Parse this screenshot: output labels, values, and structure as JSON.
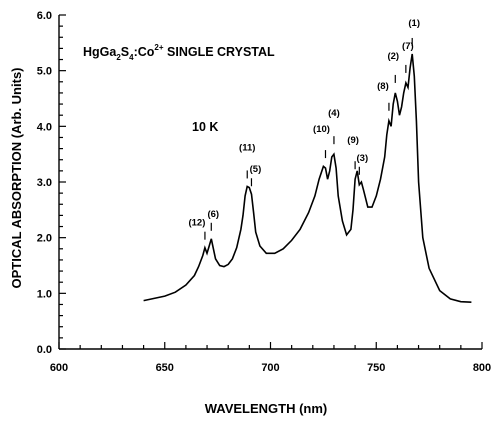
{
  "chart_data": {
    "type": "line",
    "title": "",
    "xlabel": "WAVELENGTH (nm)",
    "ylabel": "OPTICAL ABSORPTION (Arb. Units)",
    "xlim": [
      600,
      800
    ],
    "ylim": [
      0.0,
      6.0
    ],
    "xticks": [
      "600",
      "650",
      "700",
      "750",
      "800"
    ],
    "yticks": [
      "0.0",
      "1.0",
      "2.0",
      "3.0",
      "4.0",
      "5.0",
      "6.0"
    ],
    "grid": false,
    "annotations": {
      "sample_prefix": "HgGa",
      "sample_sub1": "2",
      "sample_mid": "S",
      "sample_sub2": "4",
      "sample_suffix": ":Co",
      "sample_sup": "2+",
      "sample_rest": "  SINGLE CRYSTAL",
      "temperature": "10 K"
    },
    "series": [
      {
        "x": [
          640,
          650,
          655,
          660,
          664,
          666,
          668,
          669,
          670,
          671,
          672,
          673,
          674,
          676,
          678,
          680,
          682,
          684,
          686,
          687,
          688,
          689,
          690,
          691,
          692,
          693,
          695,
          698,
          702,
          706,
          710,
          714,
          718,
          721,
          723,
          725,
          726,
          727,
          728,
          729,
          730,
          731,
          732,
          734,
          736,
          738,
          739,
          740,
          741,
          742,
          743,
          744,
          746,
          748,
          750,
          752,
          754,
          755,
          756,
          757,
          758,
          759,
          760,
          761,
          762,
          763,
          764,
          765,
          766,
          767,
          768,
          769,
          770,
          772,
          775,
          780,
          785,
          790,
          795
        ],
        "y": [
          0.87,
          0.95,
          1.02,
          1.15,
          1.32,
          1.48,
          1.68,
          1.82,
          1.72,
          1.85,
          1.98,
          1.8,
          1.62,
          1.5,
          1.48,
          1.52,
          1.62,
          1.82,
          2.15,
          2.4,
          2.75,
          2.92,
          2.9,
          2.78,
          2.45,
          2.1,
          1.85,
          1.72,
          1.72,
          1.8,
          1.95,
          2.15,
          2.45,
          2.75,
          3.05,
          3.28,
          3.25,
          3.05,
          3.2,
          3.45,
          3.5,
          3.25,
          2.75,
          2.3,
          2.05,
          2.15,
          2.5,
          3.05,
          3.2,
          2.95,
          3.0,
          2.85,
          2.55,
          2.55,
          2.75,
          3.05,
          3.45,
          3.85,
          4.1,
          4.0,
          4.4,
          4.6,
          4.45,
          4.2,
          4.35,
          4.6,
          4.78,
          4.7,
          5.05,
          5.3,
          4.9,
          4.1,
          3.0,
          2.0,
          1.45,
          1.05,
          0.9,
          0.85,
          0.84
        ]
      }
    ],
    "peaks": [
      {
        "label": "(12)",
        "x": 669
      },
      {
        "label": "(6)",
        "x": 672
      },
      {
        "label": "(11)",
        "x": 689
      },
      {
        "label": "(5)",
        "x": 691
      },
      {
        "label": "(10)",
        "x": 726
      },
      {
        "label": "(4)",
        "x": 730
      },
      {
        "label": "(9)",
        "x": 740
      },
      {
        "label": "(3)",
        "x": 742
      },
      {
        "label": "(8)",
        "x": 756
      },
      {
        "label": "(2)",
        "x": 759
      },
      {
        "label": "(7)",
        "x": 764
      },
      {
        "label": "(1)",
        "x": 767
      }
    ]
  }
}
